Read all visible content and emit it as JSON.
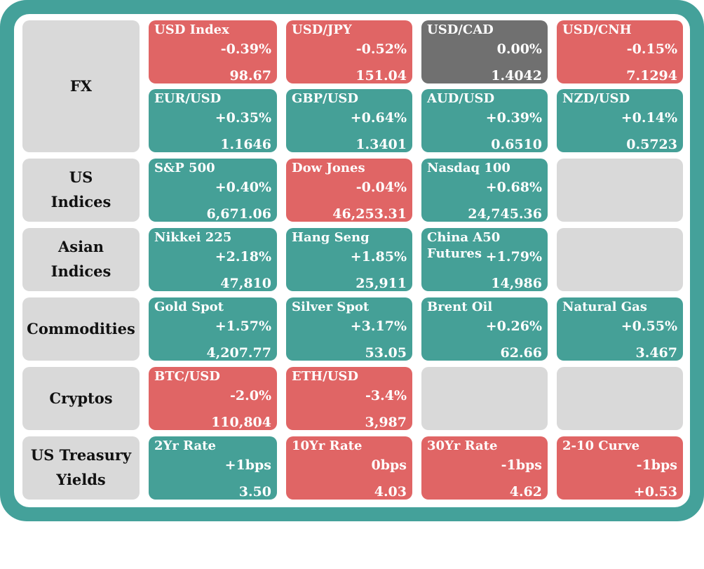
{
  "colors": {
    "frame": "#44a19a",
    "up": "#45a097",
    "down": "#e06565",
    "flat": "#707070",
    "empty": "#d9d9d9"
  },
  "categories": {
    "fx": "FX",
    "us_indices": "US\nIndices",
    "asian_indices": "Asian\nIndices",
    "commodities": "Commodities",
    "cryptos": "Cryptos",
    "treasury": "US Treasury\nYields"
  },
  "fx": [
    {
      "name": "USD Index",
      "change": "-0.39%",
      "value": "98.67",
      "dir": "down"
    },
    {
      "name": "USD/JPY",
      "change": "-0.52%",
      "value": "151.04",
      "dir": "down"
    },
    {
      "name": "USD/CAD",
      "change": "0.00%",
      "value": "1.4042",
      "dir": "flat"
    },
    {
      "name": "USD/CNH",
      "change": "-0.15%",
      "value": "7.1294",
      "dir": "down"
    },
    {
      "name": "EUR/USD",
      "change": "+0.35%",
      "value": "1.1646",
      "dir": "up"
    },
    {
      "name": "GBP/USD",
      "change": "+0.64%",
      "value": "1.3401",
      "dir": "up"
    },
    {
      "name": "AUD/USD",
      "change": "+0.39%",
      "value": "0.6510",
      "dir": "up"
    },
    {
      "name": "NZD/USD",
      "change": "+0.14%",
      "value": "0.5723",
      "dir": "up"
    }
  ],
  "us_indices": [
    {
      "name": "S&P 500",
      "change": "+0.40%",
      "value": "6,671.06",
      "dir": "up"
    },
    {
      "name": "Dow Jones",
      "change": "-0.04%",
      "value": "46,253.31",
      "dir": "down"
    },
    {
      "name": "Nasdaq 100",
      "change": "+0.68%",
      "value": "24,745.36",
      "dir": "up"
    }
  ],
  "asian_indices": [
    {
      "name": "Nikkei 225",
      "change": "+2.18%",
      "value": "47,810",
      "dir": "up"
    },
    {
      "name": "Hang Seng",
      "change": "+1.85%",
      "value": "25,911",
      "dir": "up"
    },
    {
      "name": "China A50\nFutures",
      "change": "+1.79%",
      "value": "14,986",
      "dir": "up"
    }
  ],
  "commodities": [
    {
      "name": "Gold Spot",
      "change": "+1.57%",
      "value": "4,207.77",
      "dir": "up"
    },
    {
      "name": "Silver Spot",
      "change": "+3.17%",
      "value": "53.05",
      "dir": "up"
    },
    {
      "name": "Brent Oil",
      "change": "+0.26%",
      "value": "62.66",
      "dir": "up"
    },
    {
      "name": "Natural Gas",
      "change": "+0.55%",
      "value": "3.467",
      "dir": "up"
    }
  ],
  "cryptos": [
    {
      "name": "BTC/USD",
      "change": "-2.0%",
      "value": "110,804",
      "dir": "down"
    },
    {
      "name": "ETH/USD",
      "change": "-3.4%",
      "value": "3,987",
      "dir": "down"
    }
  ],
  "treasury": [
    {
      "name": "2Yr Rate",
      "change": "+1bps",
      "value": "3.50",
      "dir": "up"
    },
    {
      "name": "10Yr Rate",
      "change": "0bps",
      "value": "4.03",
      "dir": "down"
    },
    {
      "name": "30Yr Rate",
      "change": "-1bps",
      "value": "4.62",
      "dir": "down"
    },
    {
      "name": "2-10 Curve",
      "change": "-1bps",
      "value": "+0.53",
      "dir": "down"
    }
  ]
}
